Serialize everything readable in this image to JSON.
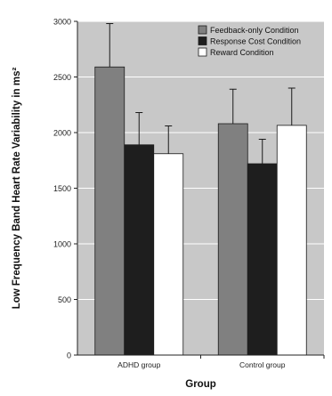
{
  "chart_data": {
    "type": "bar",
    "title": "",
    "xlabel": "Group",
    "ylabel": "Low Frequency Band Heart Rate Variability in ms²",
    "categories": [
      "ADHD group",
      "Control group"
    ],
    "ylim": [
      0,
      3000
    ],
    "yticks": [
      0,
      500,
      1000,
      1500,
      2000,
      2500,
      3000
    ],
    "ytick_labels": [
      "0",
      "500",
      "1000",
      "1500",
      "2000",
      "2500",
      "3000"
    ],
    "grid": true,
    "legend_position": "top-right",
    "error_bars": true,
    "series": [
      {
        "name": "Feedback-only Condition",
        "color": "#808080",
        "values": [
          2590,
          2080
        ],
        "errors": [
          390,
          310
        ]
      },
      {
        "name": "Response Cost Condition",
        "color": "#1e1e1e",
        "values": [
          1890,
          1720
        ],
        "errors": [
          290,
          220
        ]
      },
      {
        "name": "Reward Condition",
        "color": "#ffffff",
        "values": [
          1810,
          2065
        ],
        "errors": [
          250,
          335
        ]
      }
    ],
    "plot_background": "#c8c8c8",
    "gridline_color": "#ffffff"
  }
}
